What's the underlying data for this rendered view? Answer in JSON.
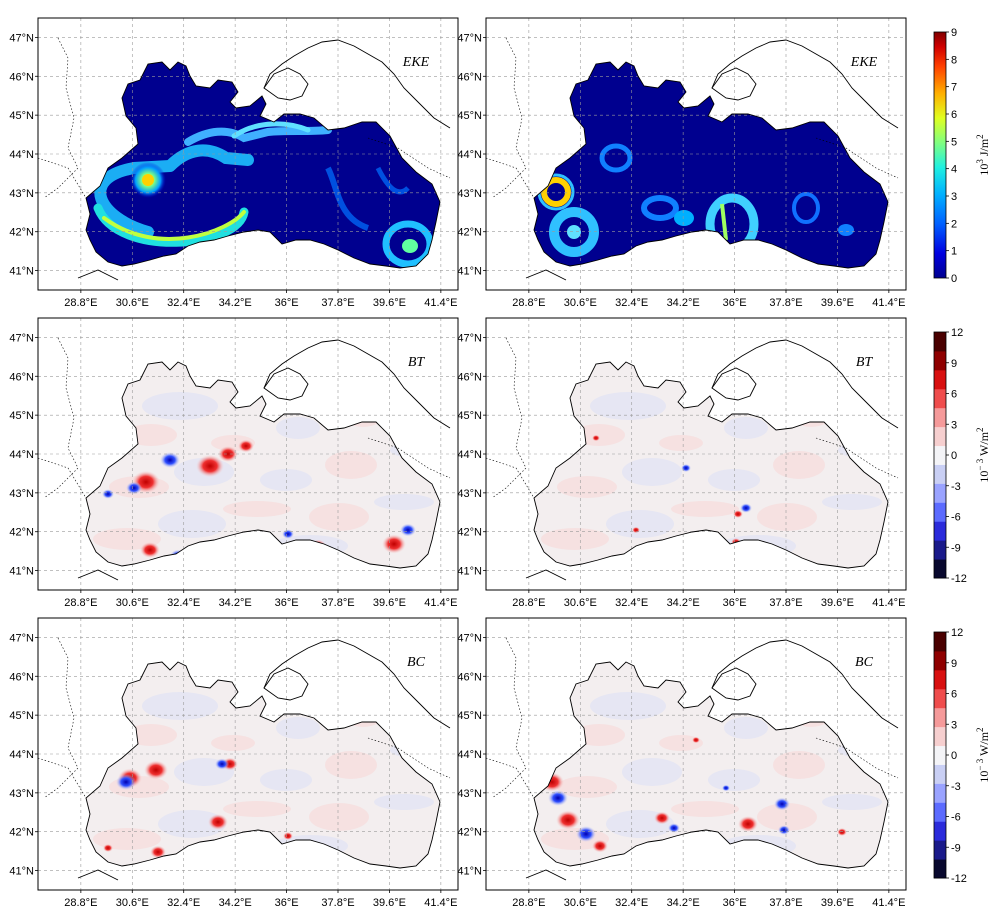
{
  "chart_data": [
    {
      "type": "heatmap",
      "panel_label": "EKE",
      "row": 0,
      "col": 0,
      "x_ticks": [
        "28.8°E",
        "30.6°E",
        "32.4°E",
        "34.2°E",
        "36°E",
        "37.8°E",
        "39.6°E",
        "41.4°E"
      ],
      "x_values": [
        28.8,
        30.6,
        32.4,
        34.2,
        36,
        37.8,
        39.6,
        41.4
      ],
      "y_ticks": [
        "41°N",
        "42°N",
        "43°N",
        "44°N",
        "45°N",
        "46°N",
        "47°N"
      ],
      "y_values": [
        41,
        42,
        43,
        44,
        45,
        46,
        47
      ],
      "xlim": [
        27.3,
        42.0
      ],
      "ylim": [
        40.5,
        47.5
      ],
      "features": [
        {
          "kind": "jet",
          "lon": 30.5,
          "lat": 43.4,
          "value": 6
        },
        {
          "kind": "jet",
          "lon": 31.5,
          "lat": 41.8,
          "value": 5
        },
        {
          "kind": "eddy",
          "lon": 39.8,
          "lat": 41.9,
          "value": 3
        }
      ]
    },
    {
      "type": "heatmap",
      "panel_label": "EKE",
      "row": 0,
      "col": 1,
      "x_ticks": [
        "28.8°E",
        "30.6°E",
        "32.4°E",
        "34.2°E",
        "36°E",
        "37.8°E",
        "39.6°E",
        "41.4°E"
      ],
      "y_ticks": [
        "41°N",
        "42°N",
        "43°N",
        "44°N",
        "45°N",
        "46°N",
        "47°N"
      ],
      "xlim": [
        27.3,
        42.0
      ],
      "ylim": [
        40.5,
        47.5
      ],
      "features": [
        {
          "kind": "eddy",
          "lon": 29.8,
          "lat": 43.2,
          "value": 6
        },
        {
          "kind": "eddy",
          "lon": 30.2,
          "lat": 42.2,
          "value": 3
        },
        {
          "kind": "eddy",
          "lon": 36.3,
          "lat": 42.3,
          "value": 4
        }
      ]
    },
    {
      "type": "heatmap",
      "panel_label": "BT",
      "row": 1,
      "col": 0,
      "x_ticks": [
        "28.8°E",
        "30.6°E",
        "32.4°E",
        "34.2°E",
        "36°E",
        "37.8°E",
        "39.6°E",
        "41.4°E"
      ],
      "y_ticks": [
        "41°N",
        "42°N",
        "43°N",
        "44°N",
        "45°N",
        "46°N",
        "47°N"
      ],
      "xlim": [
        27.3,
        42.0
      ],
      "ylim": [
        40.5,
        47.5
      ]
    },
    {
      "type": "heatmap",
      "panel_label": "BT",
      "row": 1,
      "col": 1,
      "x_ticks": [
        "28.8°E",
        "30.6°E",
        "32.4°E",
        "34.2°E",
        "36°E",
        "37.8°E",
        "39.6°E",
        "41.4°E"
      ],
      "y_ticks": [
        "41°N",
        "42°N",
        "43°N",
        "44°N",
        "45°N",
        "46°N",
        "47°N"
      ],
      "xlim": [
        27.3,
        42.0
      ],
      "ylim": [
        40.5,
        47.5
      ]
    },
    {
      "type": "heatmap",
      "panel_label": "BC",
      "row": 2,
      "col": 0,
      "x_ticks": [
        "28.8°E",
        "30.6°E",
        "32.4°E",
        "34.2°E",
        "36°E",
        "37.8°E",
        "39.6°E",
        "41.4°E"
      ],
      "y_ticks": [
        "41°N",
        "42°N",
        "43°N",
        "44°N",
        "45°N",
        "46°N",
        "47°N"
      ],
      "xlim": [
        27.3,
        42.0
      ],
      "ylim": [
        40.5,
        47.5
      ]
    },
    {
      "type": "heatmap",
      "panel_label": "BC",
      "row": 2,
      "col": 1,
      "x_ticks": [
        "28.8°E",
        "30.6°E",
        "32.4°E",
        "34.2°E",
        "36°E",
        "37.8°E",
        "39.6°E",
        "41.4°E"
      ],
      "y_ticks": [
        "41°N",
        "42°N",
        "43°N",
        "44°N",
        "45°N",
        "46°N",
        "47°N"
      ],
      "xlim": [
        27.3,
        42.0
      ],
      "ylim": [
        40.5,
        47.5
      ]
    }
  ],
  "colorbars": [
    {
      "row": 0,
      "ticks": [
        "0",
        "1",
        "2",
        "3",
        "4",
        "5",
        "6",
        "7",
        "8",
        "9"
      ],
      "range": [
        0,
        9
      ],
      "unit_base": "10",
      "unit_exp": "3",
      "unit_rest": " J/m",
      "unit_rest_exp": "2"
    },
    {
      "row": 1,
      "ticks": [
        "-12",
        "-9",
        "-6",
        "-3",
        "0",
        "3",
        "6",
        "9",
        "12"
      ],
      "range": [
        -12,
        12
      ],
      "unit_base": "10",
      "unit_exp": "− 3",
      "unit_rest": " W/m",
      "unit_rest_exp": "2"
    },
    {
      "row": 2,
      "ticks": [
        "-12",
        "-9",
        "-6",
        "-3",
        "0",
        "3",
        "6",
        "9",
        "12"
      ],
      "range": [
        -12,
        12
      ],
      "unit_base": "10",
      "unit_exp": "− 3",
      "unit_rest": " W/m",
      "unit_rest_exp": "2"
    }
  ],
  "colors": {
    "eke_scale": [
      "#00008f",
      "#0000d0",
      "#0040ff",
      "#0090ff",
      "#00d8ff",
      "#60ffa0",
      "#c0ff40",
      "#ffd000",
      "#ff7000",
      "#e00000",
      "#8f0000"
    ],
    "div_scale": [
      "#08082e",
      "#1a1a8a",
      "#2b2bdb",
      "#5c6bff",
      "#9aa3ff",
      "#c9cff4",
      "#f4f4f7",
      "#f6cfcf",
      "#f59a9a",
      "#ef4d4d",
      "#d81010",
      "#8f0000",
      "#4a0000"
    ]
  }
}
